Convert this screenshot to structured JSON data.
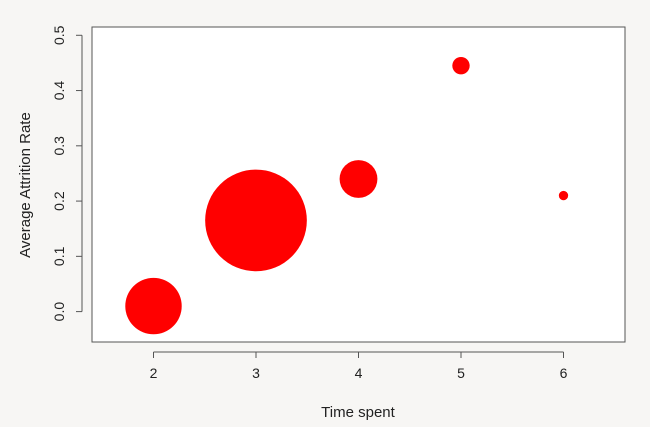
{
  "chart_data": {
    "type": "scatter",
    "title": "",
    "xlabel": "Time spent",
    "ylabel": "Average Attrition Rate",
    "xlim": [
      1.4,
      6.6
    ],
    "ylim": [
      -0.055,
      0.515
    ],
    "x_ticks": [
      2,
      3,
      4,
      5,
      6
    ],
    "y_ticks": [
      0.0,
      0.1,
      0.2,
      0.3,
      0.4,
      0.5
    ],
    "x_tick_labels": [
      "2",
      "3",
      "4",
      "5",
      "6"
    ],
    "y_tick_labels": [
      "0.0",
      "0.1",
      "0.2",
      "0.3",
      "0.4",
      "0.5"
    ],
    "grid": false,
    "legend": "none",
    "marker_color": "#ff0000",
    "points": [
      {
        "x": 2,
        "y": 0.01,
        "size": 9.1
      },
      {
        "x": 3,
        "y": 0.165,
        "size": 16.4
      },
      {
        "x": 4,
        "y": 0.24,
        "size": 6.1
      },
      {
        "x": 5,
        "y": 0.445,
        "size": 2.8
      },
      {
        "x": 6,
        "y": 0.21,
        "size": 1.5
      }
    ]
  }
}
